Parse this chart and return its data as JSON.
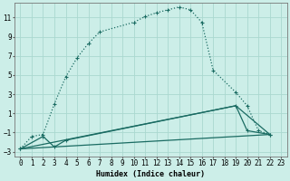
{
  "xlabel": "Humidex (Indice chaleur)",
  "bg_color": "#cceee8",
  "grid_color": "#aad8d0",
  "line_color": "#1a6b62",
  "xlim": [
    -0.5,
    23.5
  ],
  "ylim": [
    -3.5,
    12.5
  ],
  "yticks": [
    -3,
    -1,
    1,
    3,
    5,
    7,
    9,
    11
  ],
  "xticks": [
    0,
    1,
    2,
    3,
    4,
    5,
    6,
    7,
    8,
    9,
    10,
    11,
    12,
    13,
    14,
    15,
    16,
    17,
    18,
    19,
    20,
    21,
    22,
    23
  ],
  "curve1_x": [
    0,
    1,
    2,
    3,
    4,
    5,
    6,
    7,
    10,
    11,
    12,
    13,
    14,
    15,
    16,
    17,
    19,
    20,
    21,
    22
  ],
  "curve1_y": [
    -2.7,
    -1.4,
    -1.2,
    2.0,
    4.8,
    6.8,
    8.3,
    9.5,
    10.5,
    11.1,
    11.5,
    11.8,
    12.1,
    11.8,
    10.5,
    5.5,
    3.2,
    1.8,
    -0.8,
    -1.2
  ],
  "curve2_x": [
    0,
    2,
    3,
    4,
    19,
    20,
    22
  ],
  "curve2_y": [
    -2.7,
    -1.4,
    -2.5,
    -1.8,
    1.8,
    -0.8,
    -1.2
  ],
  "curve3_x": [
    0,
    19,
    22
  ],
  "curve3_y": [
    -2.7,
    1.8,
    -1.2
  ],
  "curve4_x": [
    0,
    22
  ],
  "curve4_y": [
    -2.7,
    -1.2
  ]
}
